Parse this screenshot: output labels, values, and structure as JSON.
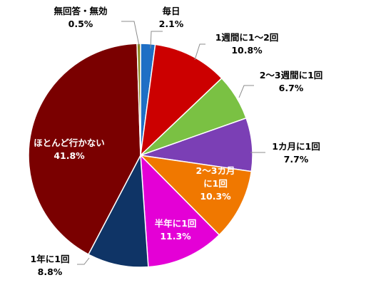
{
  "chart_data": {
    "type": "pie",
    "title": "",
    "slices": [
      {
        "name": "毎日",
        "value": 2.1,
        "value_label": "2.1%",
        "color": "#1f6fc5"
      },
      {
        "name": "1週間に1～2回",
        "value": 10.8,
        "value_label": "10.8%",
        "color": "#cc0000"
      },
      {
        "name": "2～3週間に1回",
        "value": 6.7,
        "value_label": "6.7%",
        "color": "#7ac143"
      },
      {
        "name": "1カ月に1回",
        "value": 7.7,
        "value_label": "7.7%",
        "color": "#7b3fb5"
      },
      {
        "name_lines": [
          "2～3カ月",
          "に1回"
        ],
        "name": "2～3カ月に1回",
        "value": 10.3,
        "value_label": "10.3%",
        "color": "#f07800"
      },
      {
        "name": "半年に1回",
        "value": 11.3,
        "value_label": "11.3%",
        "color": "#e400d6"
      },
      {
        "name": "1年に1回",
        "value": 8.8,
        "value_label": "8.8%",
        "color": "#0f3466"
      },
      {
        "name": "ほとんど行かない",
        "value": 41.8,
        "value_label": "41.8%",
        "color": "#7a0000"
      },
      {
        "name": "無回答・無効",
        "value": 0.5,
        "value_label": "0.5%",
        "color": "#8a8a20"
      }
    ]
  }
}
